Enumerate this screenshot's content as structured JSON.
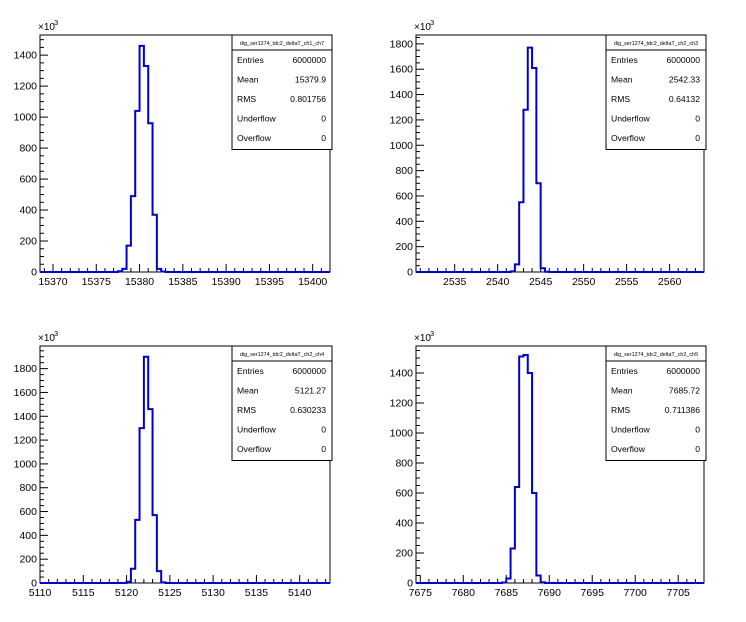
{
  "line_color": "#0000cc",
  "chart_data": [
    {
      "type": "histogram",
      "stats_title": "dig_ser1274_tdc2_deltaT_ch1_ch7",
      "stats": [
        {
          "label": "Entries",
          "value": "6000000"
        },
        {
          "label": "Mean",
          "value": "15379.9"
        },
        {
          "label": "RMS",
          "value": "0.801756"
        },
        {
          "label": "Underflow",
          "value": "0"
        },
        {
          "label": "Overflow",
          "value": "0"
        }
      ],
      "y_multiplier": "×10",
      "y_exponent": "3",
      "xlim": [
        15368.5,
        15402
      ],
      "ylim": [
        0,
        1530
      ],
      "xticks": [
        15370,
        15375,
        15380,
        15385,
        15390,
        15395,
        15400
      ],
      "xtick_labels": [
        "15370",
        "15375",
        "15380",
        "15385",
        "15390",
        "15395",
        "15400"
      ],
      "yticks": [
        0,
        200,
        400,
        600,
        800,
        1000,
        1200,
        1400
      ],
      "ytick_labels": [
        "0",
        "200",
        "400",
        "600",
        "800",
        "1000",
        "1200",
        "1400"
      ],
      "bin_start": 15368.5,
      "bin_width": 0.5,
      "counts": [
        0,
        0,
        0,
        0,
        0,
        0,
        0,
        0,
        0,
        0,
        0,
        0,
        0,
        0,
        0,
        0,
        0,
        0,
        5,
        20,
        170,
        490,
        1040,
        1460,
        1330,
        960,
        370,
        20,
        3,
        0,
        0,
        0,
        0,
        0,
        0,
        0,
        0,
        0,
        0,
        0,
        0,
        0,
        0,
        0,
        0,
        0,
        0,
        0,
        0,
        0,
        0,
        0,
        0,
        0,
        0,
        0,
        0,
        0,
        0,
        0,
        0,
        0,
        0,
        0,
        0,
        0,
        0
      ]
    },
    {
      "type": "histogram",
      "stats_title": "dig_ser1274_tdc2_deltaT_ch2_ch3",
      "stats": [
        {
          "label": "Entries",
          "value": "6000000"
        },
        {
          "label": "Mean",
          "value": "2542.33"
        },
        {
          "label": "RMS",
          "value": "0.64132"
        },
        {
          "label": "Underflow",
          "value": "0"
        },
        {
          "label": "Overflow",
          "value": "0"
        }
      ],
      "y_multiplier": "×10",
      "y_exponent": "3",
      "xlim": [
        2530.5,
        2564
      ],
      "ylim": [
        0,
        1870
      ],
      "xticks": [
        2535,
        2540,
        2545,
        2550,
        2555,
        2560
      ],
      "xtick_labels": [
        "2535",
        "2540",
        "2545",
        "2550",
        "2555",
        "2560"
      ],
      "yticks": [
        0,
        200,
        400,
        600,
        800,
        1000,
        1200,
        1400,
        1600,
        1800
      ],
      "ytick_labels": [
        "0",
        "200",
        "400",
        "600",
        "800",
        "1000",
        "1200",
        "1400",
        "1600",
        "1800"
      ],
      "bin_start": 2530.5,
      "bin_width": 0.5,
      "counts": [
        0,
        0,
        0,
        0,
        0,
        0,
        0,
        0,
        0,
        0,
        0,
        0,
        0,
        0,
        0,
        0,
        0,
        0,
        0,
        0,
        0,
        0,
        5,
        60,
        550,
        1280,
        1770,
        1610,
        700,
        30,
        2,
        0,
        0,
        0,
        0,
        0,
        0,
        0,
        0,
        0,
        0,
        0,
        0,
        0,
        0,
        0,
        0,
        0,
        0,
        0,
        0,
        0,
        0,
        0,
        0,
        0,
        0,
        0,
        0,
        0,
        0,
        0,
        0,
        0,
        0,
        0,
        0
      ]
    },
    {
      "type": "histogram",
      "stats_title": "dig_ser1274_tdc2_deltaT_ch2_ch4",
      "stats": [
        {
          "label": "Entries",
          "value": "6000000"
        },
        {
          "label": "Mean",
          "value": "5121.27"
        },
        {
          "label": "RMS",
          "value": "0.630233"
        },
        {
          "label": "Underflow",
          "value": "0"
        },
        {
          "label": "Overflow",
          "value": "0"
        }
      ],
      "y_multiplier": "×10",
      "y_exponent": "3",
      "xlim": [
        5110,
        5143.5
      ],
      "ylim": [
        0,
        1990
      ],
      "xticks": [
        5110,
        5115,
        5120,
        5125,
        5130,
        5135,
        5140
      ],
      "xtick_labels": [
        "5110",
        "5115",
        "5120",
        "5125",
        "5130",
        "5135",
        "5140"
      ],
      "yticks": [
        0,
        200,
        400,
        600,
        800,
        1000,
        1200,
        1400,
        1600,
        1800
      ],
      "ytick_labels": [
        "0",
        "200",
        "400",
        "600",
        "800",
        "1000",
        "1200",
        "1400",
        "1600",
        "1800"
      ],
      "bin_start": 5110,
      "bin_width": 0.5,
      "counts": [
        0,
        0,
        0,
        0,
        0,
        0,
        0,
        0,
        0,
        0,
        0,
        0,
        0,
        0,
        0,
        0,
        0,
        0,
        0,
        0,
        10,
        120,
        530,
        1300,
        1900,
        1460,
        570,
        100,
        5,
        0,
        0,
        0,
        0,
        0,
        0,
        0,
        0,
        0,
        0,
        0,
        0,
        0,
        0,
        0,
        0,
        0,
        0,
        0,
        0,
        0,
        0,
        0,
        0,
        0,
        0,
        0,
        0,
        0,
        0,
        0,
        0,
        0,
        0,
        0,
        0,
        0,
        0
      ]
    },
    {
      "type": "histogram",
      "stats_title": "dig_ser1274_tdc2_deltaT_ch2_ch5",
      "stats": [
        {
          "label": "Entries",
          "value": "6000000"
        },
        {
          "label": "Mean",
          "value": "7685.72"
        },
        {
          "label": "RMS",
          "value": "0.711386"
        },
        {
          "label": "Underflow",
          "value": "0"
        },
        {
          "label": "Overflow",
          "value": "0"
        }
      ],
      "y_multiplier": "×10",
      "y_exponent": "3",
      "xlim": [
        7674.5,
        7708
      ],
      "ylim": [
        0,
        1580
      ],
      "xticks": [
        7675,
        7680,
        7685,
        7690,
        7695,
        7700,
        7705
      ],
      "xtick_labels": [
        "7675",
        "7680",
        "7685",
        "7690",
        "7695",
        "7700",
        "7705"
      ],
      "yticks": [
        0,
        200,
        400,
        600,
        800,
        1000,
        1200,
        1400
      ],
      "ytick_labels": [
        "0",
        "200",
        "400",
        "600",
        "800",
        "1000",
        "1200",
        "1400"
      ],
      "bin_start": 7674.5,
      "bin_width": 0.5,
      "counts": [
        0,
        0,
        0,
        0,
        0,
        0,
        0,
        0,
        0,
        0,
        0,
        0,
        0,
        0,
        0,
        0,
        0,
        0,
        0,
        0,
        3,
        30,
        230,
        640,
        1510,
        1520,
        1400,
        600,
        50,
        5,
        0,
        0,
        0,
        0,
        0,
        0,
        0,
        0,
        0,
        0,
        0,
        0,
        0,
        0,
        0,
        0,
        0,
        0,
        0,
        0,
        0,
        0,
        0,
        0,
        0,
        0,
        0,
        0,
        0,
        0,
        0,
        0,
        0,
        0,
        0,
        0,
        0
      ]
    }
  ]
}
